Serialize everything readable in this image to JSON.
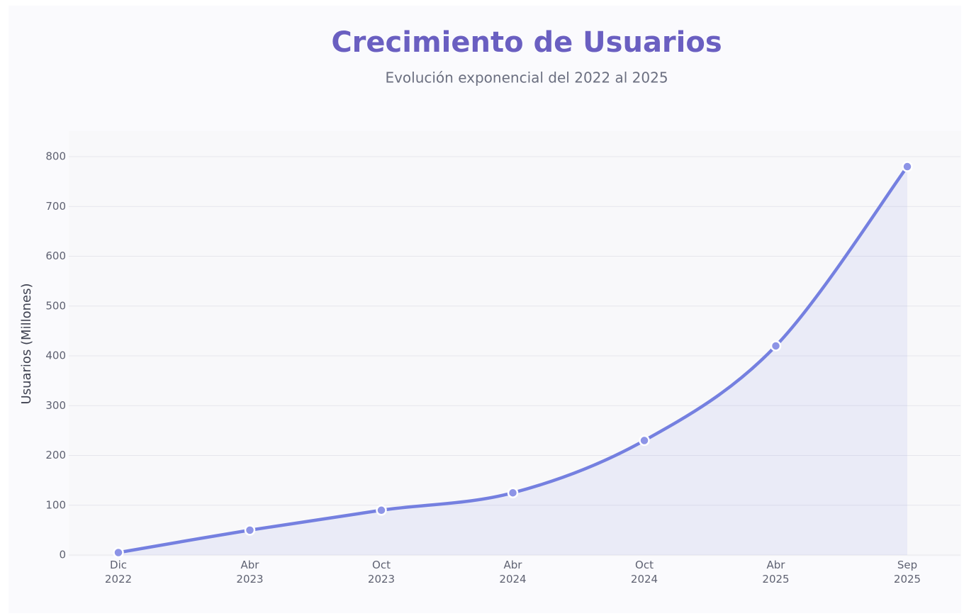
{
  "chart_data": {
    "type": "line",
    "title": "Crecimiento de Usuarios",
    "subtitle": "Evolución exponencial del 2022 al 2025",
    "y_label": "Usuarios (Millones)",
    "categories": [
      [
        "Dic",
        "2022"
      ],
      [
        "Abr",
        "2023"
      ],
      [
        "Oct",
        "2023"
      ],
      [
        "Abr",
        "2024"
      ],
      [
        "Oct",
        "2024"
      ],
      [
        "Abr",
        "2025"
      ],
      [
        "Sep",
        "2025"
      ]
    ],
    "series": [
      {
        "name": "Usuarios",
        "color": "#7580e0",
        "values": [
          5,
          50,
          90,
          125,
          230,
          420,
          780
        ]
      }
    ],
    "ylim": [
      0,
      800
    ],
    "yticks": [
      0,
      100,
      200,
      300,
      400,
      500,
      600,
      700,
      800
    ],
    "grid": true
  }
}
